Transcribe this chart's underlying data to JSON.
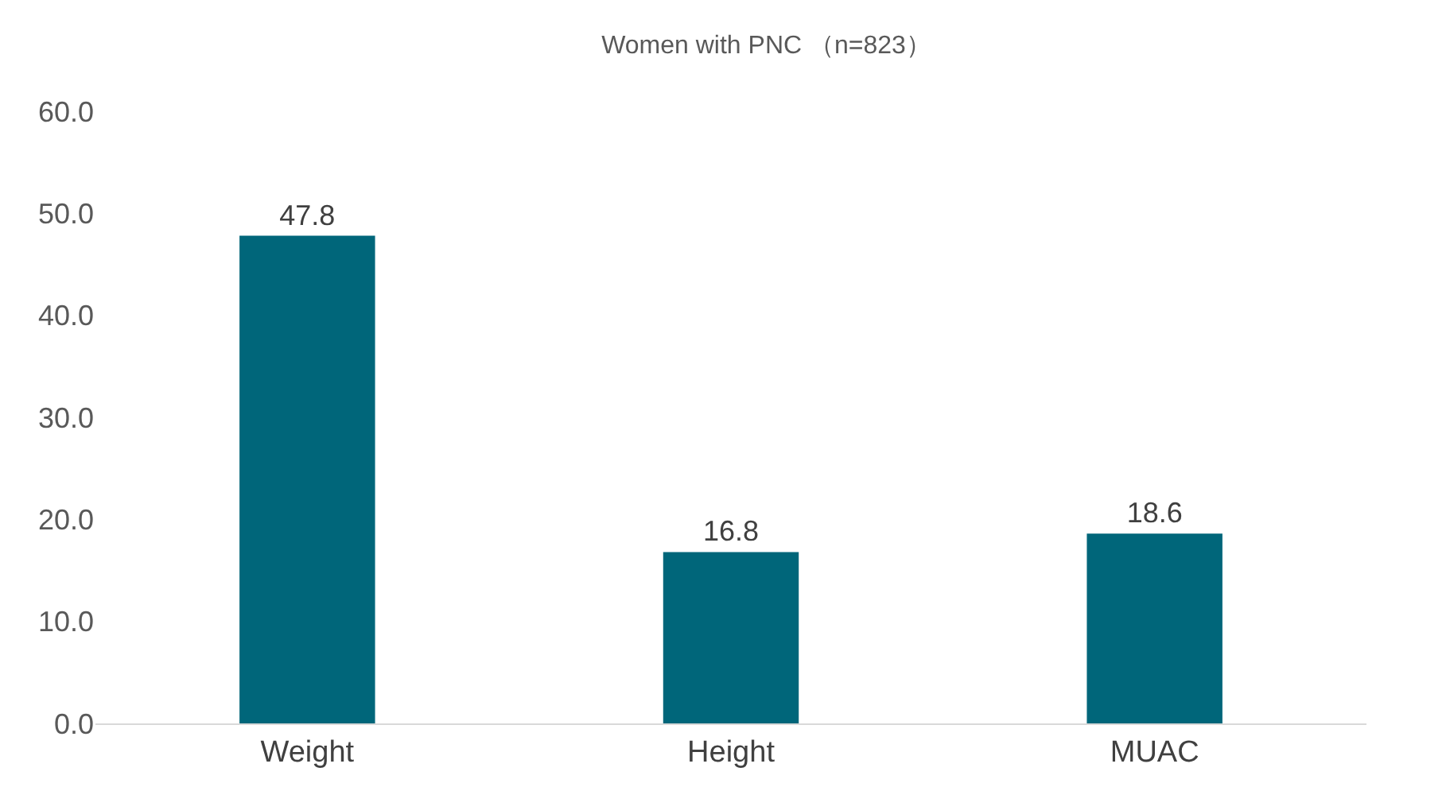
{
  "chart_data": {
    "type": "bar",
    "title": "Women with PNC （n=823）",
    "categories": [
      "Weight",
      "Height",
      "MUAC"
    ],
    "values": [
      47.8,
      16.8,
      18.6
    ],
    "color": "#00667a",
    "ylim": [
      0,
      60
    ],
    "yticks": [
      {
        "value": 0,
        "label": "0.0"
      },
      {
        "value": 10,
        "label": "10.0"
      },
      {
        "value": 20,
        "label": "20.0"
      },
      {
        "value": 30,
        "label": "30.0"
      },
      {
        "value": 40,
        "label": "40.0"
      },
      {
        "value": 50,
        "label": "50.0"
      },
      {
        "value": 60,
        "label": "60.0"
      }
    ],
    "data_labels": true
  }
}
